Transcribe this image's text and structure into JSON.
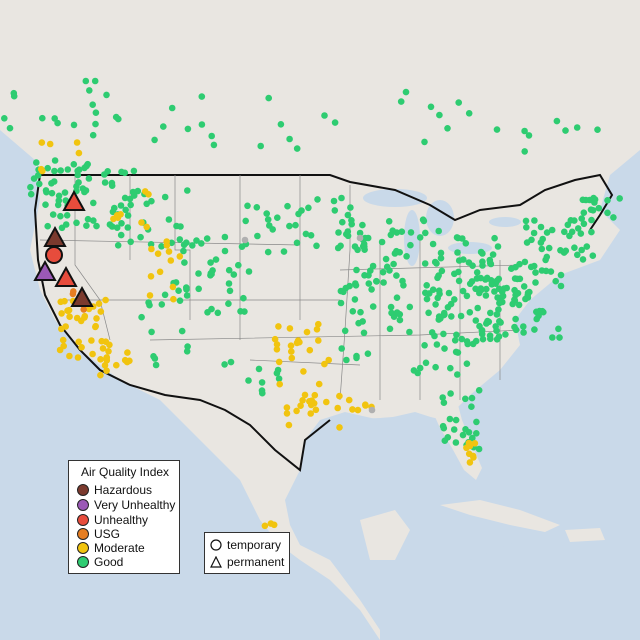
{
  "colors": {
    "water": "#c9d9e9",
    "land": "#e9e6e1",
    "hazardous": "#7b3a2e",
    "very_unhealthy": "#9b59b6",
    "unhealthy": "#e74c3c",
    "usg": "#e67e22",
    "moderate": "#f1c40f",
    "good": "#2ecc71",
    "nodata": "#b0b0b0"
  },
  "legend": {
    "title": "Air Quality Index",
    "items": [
      {
        "label": "Hazardous",
        "color": "#7b3a2e"
      },
      {
        "label": "Very Unhealthy",
        "color": "#9b59b6"
      },
      {
        "label": "Unhealthy",
        "color": "#e74c3c"
      },
      {
        "label": "USG",
        "color": "#e67e22"
      },
      {
        "label": "Moderate",
        "color": "#f1c40f"
      },
      {
        "label": "Good",
        "color": "#2ecc71"
      }
    ]
  },
  "shape_legend": {
    "temporary": "temporary",
    "permanent": "permanent"
  }
}
